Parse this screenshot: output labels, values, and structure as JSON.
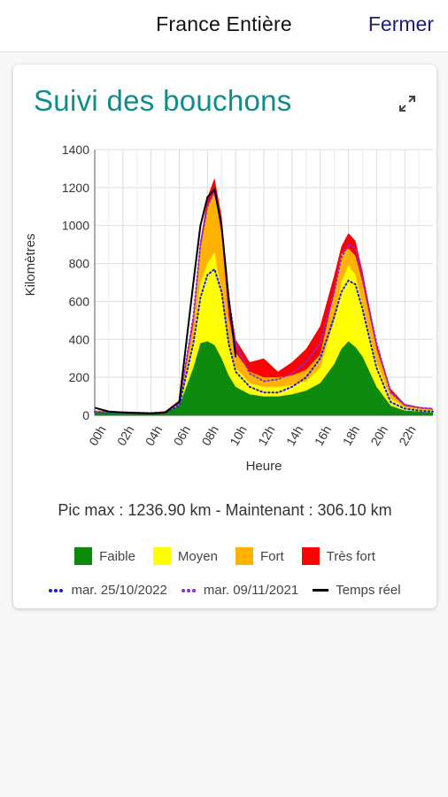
{
  "header": {
    "title": "France Entière",
    "close_label": "Fermer"
  },
  "card": {
    "title": "Suivi des bouchons"
  },
  "summary": {
    "text": "Pic max : 1236.90 km - Maintenant : 306.10 km"
  },
  "legend": {
    "levels": [
      {
        "label": "Faible",
        "color": "#0b8a0b"
      },
      {
        "label": "Moyen",
        "color": "#ffff00"
      },
      {
        "label": "Fort",
        "color": "#ffb300"
      },
      {
        "label": "Très fort",
        "color": "#ff0000"
      }
    ],
    "lines": [
      {
        "label": "mar. 25/10/2022",
        "color": "#1a1ae6",
        "style": "dotted"
      },
      {
        "label": "mar. 09/11/2021",
        "color": "#8a2be2",
        "style": "dotted"
      },
      {
        "label": "Temps réel",
        "color": "#000000",
        "style": "solid"
      }
    ]
  },
  "chart_data": {
    "type": "area",
    "xlabel": "Heure",
    "ylabel": "Kilomètres",
    "xlim": [
      0,
      24
    ],
    "ylim": [
      0,
      1400
    ],
    "yticks": [
      0,
      200,
      400,
      600,
      800,
      1000,
      1200,
      1400
    ],
    "xtick_labels": [
      "00h",
      "02h",
      "04h",
      "06h",
      "08h",
      "10h",
      "12h",
      "14h",
      "16h",
      "18h",
      "20h",
      "22h"
    ],
    "xtick_values": [
      0,
      2,
      4,
      6,
      8,
      10,
      12,
      14,
      16,
      18,
      20,
      22
    ],
    "grid": true,
    "stacked_series": [
      {
        "name": "Faible",
        "color": "#0b8a0b",
        "points": [
          [
            0,
            20
          ],
          [
            2,
            15
          ],
          [
            4,
            10
          ],
          [
            5,
            15
          ],
          [
            6,
            50
          ],
          [
            7,
            250
          ],
          [
            7.5,
            380
          ],
          [
            8,
            390
          ],
          [
            8.5,
            370
          ],
          [
            9,
            300
          ],
          [
            9.5,
            210
          ],
          [
            10,
            150
          ],
          [
            11,
            110
          ],
          [
            12,
            100
          ],
          [
            13,
            100
          ],
          [
            14,
            110
          ],
          [
            15,
            130
          ],
          [
            16,
            170
          ],
          [
            17,
            270
          ],
          [
            17.5,
            350
          ],
          [
            18,
            390
          ],
          [
            18.5,
            360
          ],
          [
            19,
            310
          ],
          [
            20,
            150
          ],
          [
            21,
            50
          ],
          [
            22,
            25
          ],
          [
            23,
            20
          ],
          [
            24,
            15
          ]
        ]
      },
      {
        "name": "Moyen",
        "color": "#ffff00",
        "points": [
          [
            0,
            22
          ],
          [
            2,
            17
          ],
          [
            4,
            12
          ],
          [
            5,
            18
          ],
          [
            6,
            60
          ],
          [
            7,
            400
          ],
          [
            7.5,
            700
          ],
          [
            8,
            800
          ],
          [
            8.5,
            860
          ],
          [
            9,
            640
          ],
          [
            9.5,
            380
          ],
          [
            10,
            250
          ],
          [
            11,
            170
          ],
          [
            12,
            150
          ],
          [
            13,
            150
          ],
          [
            14,
            160
          ],
          [
            15,
            180
          ],
          [
            16,
            250
          ],
          [
            17,
            500
          ],
          [
            17.5,
            700
          ],
          [
            18,
            790
          ],
          [
            18.5,
            740
          ],
          [
            19,
            580
          ],
          [
            20,
            280
          ],
          [
            21,
            90
          ],
          [
            22,
            40
          ],
          [
            23,
            30
          ],
          [
            24,
            25
          ]
        ]
      },
      {
        "name": "Fort",
        "color": "#ffb300",
        "points": [
          [
            0,
            24
          ],
          [
            2,
            18
          ],
          [
            4,
            13
          ],
          [
            5,
            20
          ],
          [
            6,
            70
          ],
          [
            7,
            480
          ],
          [
            7.5,
            880
          ],
          [
            8,
            1100
          ],
          [
            8.5,
            1180
          ],
          [
            9,
            950
          ],
          [
            9.5,
            520
          ],
          [
            10,
            330
          ],
          [
            11,
            230
          ],
          [
            12,
            200
          ],
          [
            13,
            200
          ],
          [
            14,
            210
          ],
          [
            15,
            240
          ],
          [
            16,
            320
          ],
          [
            17,
            650
          ],
          [
            17.5,
            850
          ],
          [
            18,
            880
          ],
          [
            18.5,
            840
          ],
          [
            19,
            700
          ],
          [
            20,
            350
          ],
          [
            21,
            120
          ],
          [
            22,
            50
          ],
          [
            23,
            40
          ],
          [
            24,
            30
          ]
        ]
      },
      {
        "name": "Très fort",
        "color": "#ff0000",
        "points": [
          [
            0,
            25
          ],
          [
            2,
            20
          ],
          [
            4,
            15
          ],
          [
            5,
            22
          ],
          [
            6,
            80
          ],
          [
            7,
            520
          ],
          [
            7.5,
            920
          ],
          [
            8,
            1150
          ],
          [
            8.5,
            1250
          ],
          [
            9,
            1050
          ],
          [
            9.5,
            620
          ],
          [
            10,
            400
          ],
          [
            11,
            280
          ],
          [
            12,
            300
          ],
          [
            13,
            230
          ],
          [
            14,
            280
          ],
          [
            15,
            350
          ],
          [
            16,
            470
          ],
          [
            17,
            740
          ],
          [
            17.5,
            890
          ],
          [
            18,
            960
          ],
          [
            18.5,
            920
          ],
          [
            19,
            760
          ],
          [
            20,
            380
          ],
          [
            21,
            140
          ],
          [
            22,
            60
          ],
          [
            23,
            45
          ],
          [
            24,
            35
          ]
        ]
      }
    ],
    "line_series": [
      {
        "name": "mar. 25/10/2022",
        "color": "#1a1ae6",
        "style": "dotted",
        "points": [
          [
            0,
            18
          ],
          [
            2,
            15
          ],
          [
            4,
            12
          ],
          [
            5,
            14
          ],
          [
            6,
            50
          ],
          [
            7,
            380
          ],
          [
            7.5,
            620
          ],
          [
            8,
            740
          ],
          [
            8.5,
            770
          ],
          [
            9,
            650
          ],
          [
            9.5,
            380
          ],
          [
            10,
            230
          ],
          [
            11,
            150
          ],
          [
            12,
            120
          ],
          [
            13,
            120
          ],
          [
            14,
            150
          ],
          [
            15,
            200
          ],
          [
            16,
            300
          ],
          [
            17,
            520
          ],
          [
            17.5,
            650
          ],
          [
            18,
            710
          ],
          [
            18.5,
            690
          ],
          [
            19,
            560
          ],
          [
            20,
            250
          ],
          [
            21,
            70
          ],
          [
            22,
            35
          ],
          [
            23,
            25
          ],
          [
            24,
            20
          ]
        ]
      },
      {
        "name": "mar. 09/11/2021",
        "color": "#8a2be2",
        "style": "dotted",
        "points": [
          [
            0,
            20
          ],
          [
            2,
            16
          ],
          [
            4,
            12
          ],
          [
            5,
            15
          ],
          [
            6,
            60
          ],
          [
            7,
            520
          ],
          [
            7.5,
            900
          ],
          [
            8,
            1100
          ],
          [
            8.5,
            1180
          ],
          [
            9,
            1000
          ],
          [
            9.5,
            620
          ],
          [
            10,
            380
          ],
          [
            11,
            220
          ],
          [
            12,
            180
          ],
          [
            13,
            190
          ],
          [
            14,
            220
          ],
          [
            15,
            280
          ],
          [
            16,
            380
          ],
          [
            17,
            650
          ],
          [
            17.5,
            830
          ],
          [
            18,
            900
          ],
          [
            18.5,
            880
          ],
          [
            19,
            720
          ],
          [
            20,
            380
          ],
          [
            21,
            120
          ],
          [
            22,
            55
          ],
          [
            23,
            40
          ],
          [
            24,
            35
          ]
        ]
      },
      {
        "name": "Temps réel",
        "color": "#000000",
        "style": "solid",
        "points": [
          [
            0,
            40
          ],
          [
            1,
            20
          ],
          [
            2,
            15
          ],
          [
            3,
            12
          ],
          [
            4,
            10
          ],
          [
            5,
            15
          ],
          [
            6,
            70
          ],
          [
            7,
            700
          ],
          [
            7.5,
            1000
          ],
          [
            8,
            1150
          ],
          [
            8.5,
            1190
          ],
          [
            9,
            1000
          ],
          [
            9.5,
            620
          ],
          [
            10,
            306.1
          ]
        ]
      }
    ]
  }
}
